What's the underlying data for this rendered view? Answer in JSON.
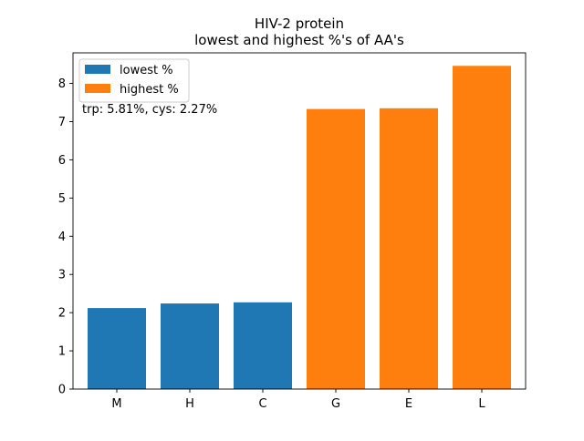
{
  "chart_data": {
    "type": "bar",
    "title_line1": "HIV-2 protein",
    "title_line2": "lowest and highest %'s of AA's",
    "xlabel": "",
    "ylabel": "",
    "ylim": [
      0,
      8.8
    ],
    "y_ticks": [
      0,
      1,
      2,
      3,
      4,
      5,
      6,
      7,
      8
    ],
    "categories": [
      "M",
      "H",
      "C",
      "G",
      "E",
      "L"
    ],
    "series": [
      {
        "name": "lowest %",
        "color": "#1f77b4",
        "points": [
          {
            "category": "M",
            "value": 2.12
          },
          {
            "category": "H",
            "value": 2.24
          },
          {
            "category": "C",
            "value": 2.27
          }
        ]
      },
      {
        "name": "highest %",
        "color": "#ff7f0e",
        "points": [
          {
            "category": "G",
            "value": 7.33
          },
          {
            "category": "E",
            "value": 7.35
          },
          {
            "category": "L",
            "value": 8.46
          }
        ]
      }
    ],
    "legend_position": "top-left",
    "annotation": "trp: 5.81%, cys: 2.27%"
  }
}
